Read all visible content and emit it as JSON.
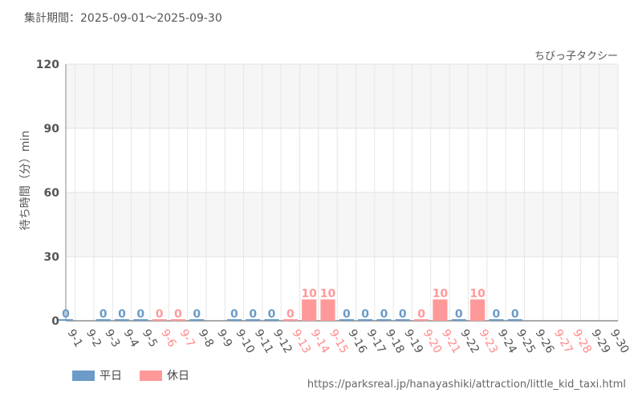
{
  "header": {
    "period_label": "集計期間：2025-09-01～2025-09-30"
  },
  "source": {
    "url": "https://parksreal.jp/hanayashiki/attraction/little_kid_taxi.html"
  },
  "legend": [
    {
      "label": "平日",
      "color": "#6b9bc8"
    },
    {
      "label": "休日",
      "color": "#ff9999"
    }
  ],
  "chart_data": {
    "type": "bar",
    "title": "ちびっ子タクシー",
    "ylabel": "待ち時間（分）min",
    "xlabel": "",
    "ylim": [
      0,
      120
    ],
    "yticks": [
      0,
      30,
      60,
      90,
      120
    ],
    "grid": true,
    "legend_position": "bottom-left",
    "colors": {
      "weekday": "#6b9bc8",
      "holiday": "#ff9999"
    },
    "categories": [
      "9-1",
      "9-2",
      "9-3",
      "9-4",
      "9-5",
      "9-6",
      "9-7",
      "9-8",
      "9-9",
      "9-10",
      "9-11",
      "9-12",
      "9-13",
      "9-14",
      "9-15",
      "9-16",
      "9-17",
      "9-18",
      "9-19",
      "9-20",
      "9-21",
      "9-22",
      "9-23",
      "9-24",
      "9-25",
      "9-26",
      "9-27",
      "9-28",
      "9-29",
      "9-30"
    ],
    "day_type": [
      "weekday",
      "weekday",
      "weekday",
      "weekday",
      "weekday",
      "holiday",
      "holiday",
      "weekday",
      "weekday",
      "weekday",
      "weekday",
      "weekday",
      "holiday",
      "holiday",
      "holiday",
      "weekday",
      "weekday",
      "weekday",
      "weekday",
      "holiday",
      "holiday",
      "weekday",
      "holiday",
      "weekday",
      "weekday",
      "weekday",
      "holiday",
      "holiday",
      "weekday",
      "weekday"
    ],
    "values": [
      0,
      null,
      0,
      0,
      0,
      0,
      0,
      0,
      null,
      0,
      0,
      0,
      0,
      10,
      10,
      0,
      0,
      0,
      0,
      0,
      10,
      0,
      10,
      0,
      0,
      null,
      null,
      null,
      null,
      null
    ]
  }
}
